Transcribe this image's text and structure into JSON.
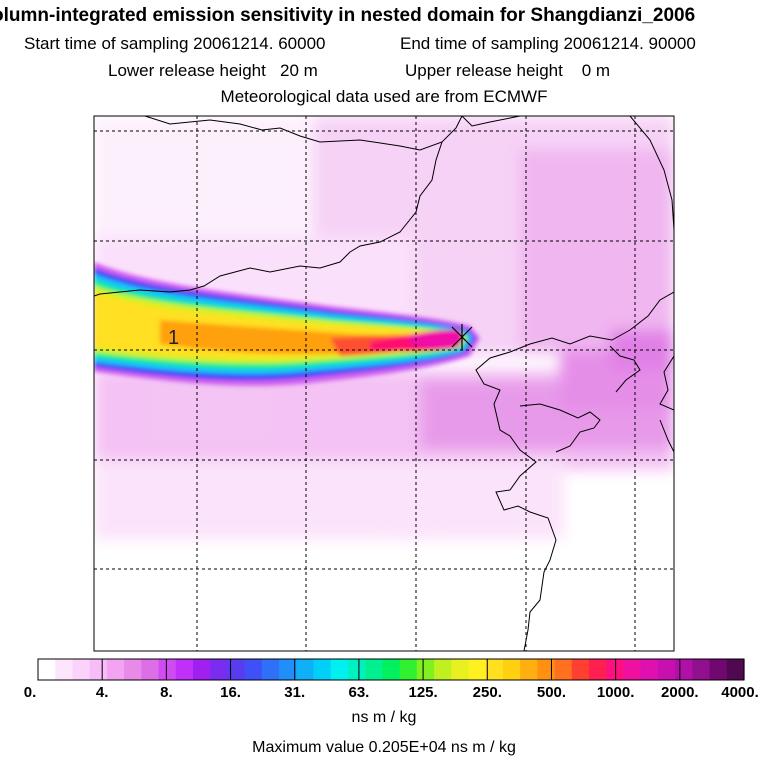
{
  "header": {
    "title": "olumn-integrated emission sensitivity in nested domain for Shangdianzi_2006",
    "start_time": "Start time of sampling 20061214. 60000",
    "end_time": "End time of sampling 20061214. 90000",
    "lower_height": "Lower release height   20 m",
    "upper_height": "Upper release height    0 m",
    "met_data": "Meteorological data used are from ECMWF"
  },
  "map": {
    "release_marker_label": "1"
  },
  "colorbar": {
    "tick_labels": [
      "0.",
      "4.",
      "8.",
      "16.",
      "31.",
      "63.",
      "125.",
      "250.",
      "500.",
      "1000.",
      "2000.",
      "4000."
    ],
    "units": "ns m / kg",
    "colors": [
      "#ffffff",
      "#fde6fd",
      "#fbd2fb",
      "#f8bcf8",
      "#f2a4f2",
      "#e88ae8",
      "#dc6ee8",
      "#d04cf2",
      "#c030f8",
      "#a020f0",
      "#7a2cf0",
      "#5a3cf0",
      "#4050f8",
      "#3070f8",
      "#2090f8",
      "#10b0f8",
      "#00d0f8",
      "#00f0f0",
      "#00f0c0",
      "#00f090",
      "#00f060",
      "#30f030",
      "#80f020",
      "#c0f020",
      "#e8f020",
      "#fff020",
      "#ffe020",
      "#ffd010",
      "#ffb010",
      "#ff9010",
      "#ff7020",
      "#ff4030",
      "#ff2050",
      "#ff1080",
      "#f010a0",
      "#e010b0",
      "#c810b0",
      "#b010a8",
      "#901090",
      "#700870",
      "#500850"
    ]
  },
  "footer": {
    "max_value": "Maximum value  0.205E+04 ns m / kg"
  }
}
